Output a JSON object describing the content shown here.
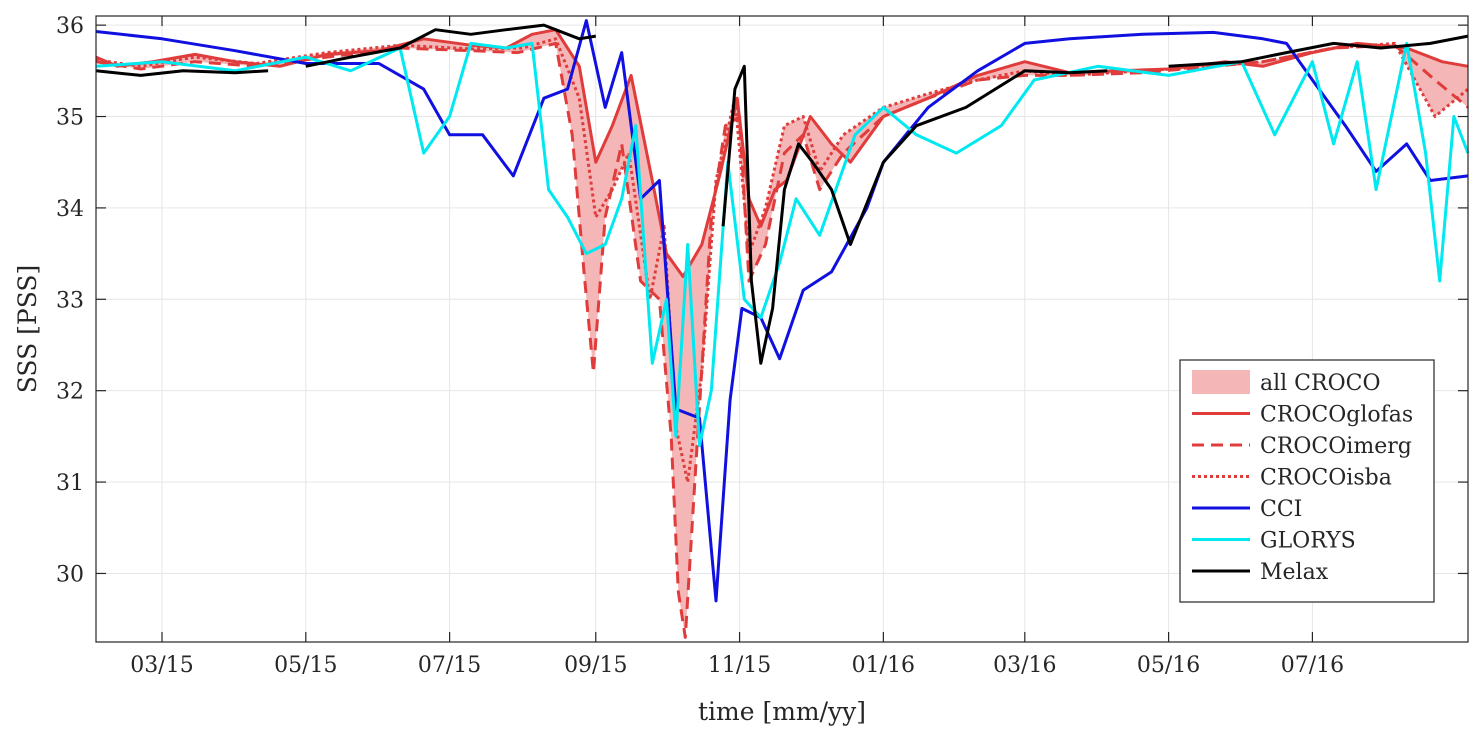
{
  "chart_data": {
    "type": "line",
    "xlabel": "time [mm/yy]",
    "ylabel": "SSS [PSS]",
    "xlim": [
      "2015-02-01",
      "2016-09-05"
    ],
    "ylim": [
      29.25,
      36.1
    ],
    "grid": true,
    "legend_position": "bottom-right",
    "x_ticks": [
      "2015-03-01",
      "2015-05-01",
      "2015-07-01",
      "2015-09-01",
      "2015-11-01",
      "2016-01-01",
      "2016-03-01",
      "2016-05-01",
      "2016-07-01"
    ],
    "x_tick_labels": [
      "03/15",
      "05/15",
      "07/15",
      "09/15",
      "11/15",
      "01/16",
      "03/16",
      "05/16",
      "07/16"
    ],
    "y_ticks": [
      30,
      31,
      32,
      33,
      34,
      35,
      36
    ],
    "y_tick_labels": [
      "30",
      "31",
      "32",
      "33",
      "34",
      "35",
      "36"
    ],
    "envelope": {
      "name": "all CROCO",
      "color": "#f4b6b6",
      "of_series": [
        "CROCOglofas",
        "CROCOimerg",
        "CROCOisba"
      ]
    },
    "series": [
      {
        "name": "CROCOglofas",
        "color": "#e03c3c",
        "dash": "solid",
        "points": [
          [
            "2015-02-01",
            35.65
          ],
          [
            "2015-02-10",
            35.55
          ],
          [
            "2015-02-25",
            35.6
          ],
          [
            "2015-03-15",
            35.68
          ],
          [
            "2015-04-01",
            35.6
          ],
          [
            "2015-04-20",
            35.55
          ],
          [
            "2015-05-10",
            35.68
          ],
          [
            "2015-06-01",
            35.72
          ],
          [
            "2015-06-20",
            35.85
          ],
          [
            "2015-07-10",
            35.78
          ],
          [
            "2015-07-25",
            35.75
          ],
          [
            "2015-08-05",
            35.9
          ],
          [
            "2015-08-15",
            35.95
          ],
          [
            "2015-08-25",
            35.55
          ],
          [
            "2015-09-01",
            34.5
          ],
          [
            "2015-09-08",
            34.9
          ],
          [
            "2015-09-16",
            35.45
          ],
          [
            "2015-09-25",
            34.3
          ],
          [
            "2015-10-01",
            33.5
          ],
          [
            "2015-10-08",
            33.25
          ],
          [
            "2015-10-16",
            33.6
          ],
          [
            "2015-10-24",
            34.4
          ],
          [
            "2015-10-31",
            35.2
          ],
          [
            "2015-11-05",
            34.1
          ],
          [
            "2015-11-10",
            33.8
          ],
          [
            "2015-11-16",
            34.2
          ],
          [
            "2015-11-21",
            34.3
          ],
          [
            "2015-12-01",
            35.0
          ],
          [
            "2015-12-10",
            34.7
          ],
          [
            "2015-12-18",
            34.5
          ],
          [
            "2016-01-01",
            35.0
          ],
          [
            "2016-01-20",
            35.2
          ],
          [
            "2016-02-10",
            35.45
          ],
          [
            "2016-03-01",
            35.6
          ],
          [
            "2016-03-20",
            35.48
          ],
          [
            "2016-04-10",
            35.5
          ],
          [
            "2016-05-01",
            35.52
          ],
          [
            "2016-05-25",
            35.6
          ],
          [
            "2016-06-10",
            35.55
          ],
          [
            "2016-07-01",
            35.7
          ],
          [
            "2016-07-20",
            35.8
          ],
          [
            "2016-08-10",
            35.75
          ],
          [
            "2016-08-25",
            35.6
          ],
          [
            "2016-09-05",
            35.55
          ]
        ]
      },
      {
        "name": "CROCOimerg",
        "color": "#e03c3c",
        "dash": "dashed",
        "points": [
          [
            "2015-02-01",
            35.6
          ],
          [
            "2015-02-20",
            35.52
          ],
          [
            "2015-03-15",
            35.6
          ],
          [
            "2015-04-10",
            35.55
          ],
          [
            "2015-05-10",
            35.65
          ],
          [
            "2015-06-10",
            35.75
          ],
          [
            "2015-07-10",
            35.72
          ],
          [
            "2015-07-30",
            35.7
          ],
          [
            "2015-08-15",
            35.8
          ],
          [
            "2015-08-22",
            34.8
          ],
          [
            "2015-08-27",
            33.3
          ],
          [
            "2015-08-31",
            32.2
          ],
          [
            "2015-09-05",
            33.9
          ],
          [
            "2015-09-12",
            34.7
          ],
          [
            "2015-09-20",
            33.2
          ],
          [
            "2015-09-28",
            33.0
          ],
          [
            "2015-10-03",
            31.5
          ],
          [
            "2015-10-06",
            29.8
          ],
          [
            "2015-10-09",
            29.3
          ],
          [
            "2015-10-13",
            31.0
          ],
          [
            "2015-10-20",
            33.9
          ],
          [
            "2015-10-26",
            34.9
          ],
          [
            "2015-11-01",
            35.0
          ],
          [
            "2015-11-05",
            33.2
          ],
          [
            "2015-11-12",
            33.6
          ],
          [
            "2015-11-20",
            34.6
          ],
          [
            "2015-11-28",
            34.8
          ],
          [
            "2015-12-05",
            34.2
          ],
          [
            "2015-12-15",
            34.6
          ],
          [
            "2016-01-01",
            35.0
          ],
          [
            "2016-01-20",
            35.2
          ],
          [
            "2016-02-10",
            35.4
          ],
          [
            "2016-03-01",
            35.45
          ],
          [
            "2016-03-20",
            35.45
          ],
          [
            "2016-04-20",
            35.48
          ],
          [
            "2016-05-20",
            35.55
          ],
          [
            "2016-06-10",
            35.6
          ],
          [
            "2016-07-10",
            35.75
          ],
          [
            "2016-08-05",
            35.78
          ],
          [
            "2016-08-22",
            35.4
          ],
          [
            "2016-09-05",
            35.1
          ]
        ]
      },
      {
        "name": "CROCOisba",
        "color": "#e03c3c",
        "dash": "dotted",
        "points": [
          [
            "2015-02-01",
            35.62
          ],
          [
            "2015-02-20",
            35.55
          ],
          [
            "2015-03-15",
            35.65
          ],
          [
            "2015-04-10",
            35.58
          ],
          [
            "2015-05-10",
            35.7
          ],
          [
            "2015-06-10",
            35.78
          ],
          [
            "2015-07-10",
            35.74
          ],
          [
            "2015-08-01",
            35.75
          ],
          [
            "2015-08-15",
            35.85
          ],
          [
            "2015-08-25",
            35.2
          ],
          [
            "2015-09-01",
            33.9
          ],
          [
            "2015-09-08",
            34.2
          ],
          [
            "2015-09-15",
            34.6
          ],
          [
            "2015-09-24",
            33.0
          ],
          [
            "2015-09-30",
            33.8
          ],
          [
            "2015-10-05",
            31.6
          ],
          [
            "2015-10-10",
            31.0
          ],
          [
            "2015-10-16",
            32.2
          ],
          [
            "2015-10-22",
            34.3
          ],
          [
            "2015-10-30",
            35.2
          ],
          [
            "2015-11-05",
            33.5
          ],
          [
            "2015-11-12",
            34.0
          ],
          [
            "2015-11-20",
            34.9
          ],
          [
            "2015-11-28",
            35.0
          ],
          [
            "2015-12-05",
            34.4
          ],
          [
            "2015-12-15",
            34.8
          ],
          [
            "2016-01-01",
            35.1
          ],
          [
            "2016-01-20",
            35.25
          ],
          [
            "2016-02-10",
            35.4
          ],
          [
            "2016-03-01",
            35.5
          ],
          [
            "2016-03-20",
            35.45
          ],
          [
            "2016-04-20",
            35.5
          ],
          [
            "2016-05-20",
            35.55
          ],
          [
            "2016-06-10",
            35.6
          ],
          [
            "2016-07-10",
            35.75
          ],
          [
            "2016-08-05",
            35.8
          ],
          [
            "2016-08-22",
            35.0
          ],
          [
            "2016-09-05",
            35.3
          ]
        ]
      },
      {
        "name": "CCI",
        "color": "#1010e0",
        "dash": "solid",
        "points": [
          [
            "2015-02-01",
            35.93
          ],
          [
            "2015-03-01",
            35.85
          ],
          [
            "2015-04-01",
            35.72
          ],
          [
            "2015-05-01",
            35.58
          ],
          [
            "2015-06-01",
            35.58
          ],
          [
            "2015-06-20",
            35.3
          ],
          [
            "2015-07-01",
            34.8
          ],
          [
            "2015-07-15",
            34.8
          ],
          [
            "2015-07-28",
            34.35
          ],
          [
            "2015-08-10",
            35.2
          ],
          [
            "2015-08-20",
            35.3
          ],
          [
            "2015-08-28",
            36.05
          ],
          [
            "2015-09-05",
            35.1
          ],
          [
            "2015-09-12",
            35.7
          ],
          [
            "2015-09-20",
            34.1
          ],
          [
            "2015-09-28",
            34.3
          ],
          [
            "2015-10-05",
            31.8
          ],
          [
            "2015-10-15",
            31.7
          ],
          [
            "2015-10-22",
            29.7
          ],
          [
            "2015-10-28",
            31.9
          ],
          [
            "2015-11-02",
            32.9
          ],
          [
            "2015-11-10",
            32.8
          ],
          [
            "2015-11-18",
            32.35
          ],
          [
            "2015-11-28",
            33.1
          ],
          [
            "2015-12-10",
            33.3
          ],
          [
            "2015-12-25",
            34.0
          ],
          [
            "2016-01-01",
            34.5
          ],
          [
            "2016-01-20",
            35.1
          ],
          [
            "2016-02-10",
            35.5
          ],
          [
            "2016-03-01",
            35.8
          ],
          [
            "2016-03-20",
            35.85
          ],
          [
            "2016-04-20",
            35.9
          ],
          [
            "2016-05-20",
            35.92
          ],
          [
            "2016-06-10",
            35.85
          ],
          [
            "2016-06-20",
            35.8
          ],
          [
            "2016-07-01",
            35.4
          ],
          [
            "2016-07-15",
            34.9
          ],
          [
            "2016-07-28",
            34.4
          ],
          [
            "2016-08-10",
            34.7
          ],
          [
            "2016-08-20",
            34.3
          ],
          [
            "2016-09-05",
            34.35
          ]
        ]
      },
      {
        "name": "GLORYS",
        "color": "#00e8f0",
        "dash": "solid",
        "points": [
          [
            "2015-02-01",
            35.55
          ],
          [
            "2015-03-01",
            35.6
          ],
          [
            "2015-04-01",
            35.5
          ],
          [
            "2015-05-01",
            35.65
          ],
          [
            "2015-05-20",
            35.5
          ],
          [
            "2015-06-10",
            35.75
          ],
          [
            "2015-06-20",
            34.6
          ],
          [
            "2015-07-01",
            35.0
          ],
          [
            "2015-07-10",
            35.8
          ],
          [
            "2015-07-25",
            35.75
          ],
          [
            "2015-08-05",
            35.8
          ],
          [
            "2015-08-12",
            34.2
          ],
          [
            "2015-08-20",
            33.9
          ],
          [
            "2015-08-28",
            33.5
          ],
          [
            "2015-09-05",
            33.6
          ],
          [
            "2015-09-12",
            34.1
          ],
          [
            "2015-09-18",
            34.9
          ],
          [
            "2015-09-25",
            32.3
          ],
          [
            "2015-10-01",
            33.0
          ],
          [
            "2015-10-05",
            31.5
          ],
          [
            "2015-10-10",
            33.6
          ],
          [
            "2015-10-15",
            31.4
          ],
          [
            "2015-10-20",
            32.0
          ],
          [
            "2015-10-27",
            34.5
          ],
          [
            "2015-11-03",
            33.0
          ],
          [
            "2015-11-10",
            32.8
          ],
          [
            "2015-11-18",
            33.4
          ],
          [
            "2015-11-25",
            34.1
          ],
          [
            "2015-12-05",
            33.7
          ],
          [
            "2015-12-20",
            34.8
          ],
          [
            "2016-01-01",
            35.1
          ],
          [
            "2016-01-15",
            34.8
          ],
          [
            "2016-02-01",
            34.6
          ],
          [
            "2016-02-20",
            34.9
          ],
          [
            "2016-03-05",
            35.4
          ],
          [
            "2016-04-01",
            35.55
          ],
          [
            "2016-05-01",
            35.45
          ],
          [
            "2016-06-01",
            35.6
          ],
          [
            "2016-06-15",
            34.8
          ],
          [
            "2016-07-01",
            35.6
          ],
          [
            "2016-07-10",
            34.7
          ],
          [
            "2016-07-20",
            35.6
          ],
          [
            "2016-07-28",
            34.2
          ],
          [
            "2016-08-10",
            35.8
          ],
          [
            "2016-08-18",
            34.6
          ],
          [
            "2016-08-24",
            33.2
          ],
          [
            "2016-08-30",
            35.0
          ],
          [
            "2016-09-05",
            34.6
          ]
        ]
      },
      {
        "name": "Melax",
        "color": "#000000",
        "dash": "solid",
        "segments": [
          [
            [
              "2015-02-01",
              35.5
            ],
            [
              "2015-02-20",
              35.45
            ],
            [
              "2015-03-10",
              35.5
            ],
            [
              "2015-04-01",
              35.48
            ],
            [
              "2015-04-15",
              35.5
            ]
          ],
          [
            [
              "2015-05-01",
              35.55
            ],
            [
              "2015-05-20",
              35.65
            ],
            [
              "2015-06-10",
              35.75
            ],
            [
              "2015-06-25",
              35.95
            ],
            [
              "2015-07-10",
              35.9
            ],
            [
              "2015-07-25",
              35.95
            ],
            [
              "2015-08-10",
              36.0
            ],
            [
              "2015-08-25",
              35.85
            ],
            [
              "2015-09-01",
              35.88
            ]
          ],
          [
            [
              "2015-10-25",
              33.8
            ],
            [
              "2015-10-30",
              35.3
            ],
            [
              "2015-11-03",
              35.55
            ],
            [
              "2015-11-06",
              33.2
            ],
            [
              "2015-11-10",
              32.3
            ],
            [
              "2015-11-15",
              32.9
            ],
            [
              "2015-11-20",
              34.2
            ],
            [
              "2015-11-26",
              34.7
            ],
            [
              "2015-12-02",
              34.5
            ],
            [
              "2015-12-10",
              34.2
            ],
            [
              "2015-12-18",
              33.6
            ],
            [
              "2016-01-01",
              34.5
            ],
            [
              "2016-01-15",
              34.9
            ],
            [
              "2016-02-05",
              35.1
            ],
            [
              "2016-03-01",
              35.5
            ],
            [
              "2016-03-20",
              35.48
            ],
            [
              "2016-04-05",
              35.5
            ]
          ],
          [
            [
              "2016-05-01",
              35.55
            ],
            [
              "2016-06-01",
              35.6
            ],
            [
              "2016-06-20",
              35.7
            ],
            [
              "2016-07-10",
              35.8
            ],
            [
              "2016-07-30",
              35.75
            ],
            [
              "2016-08-20",
              35.8
            ],
            [
              "2016-09-05",
              35.88
            ]
          ]
        ]
      }
    ]
  }
}
